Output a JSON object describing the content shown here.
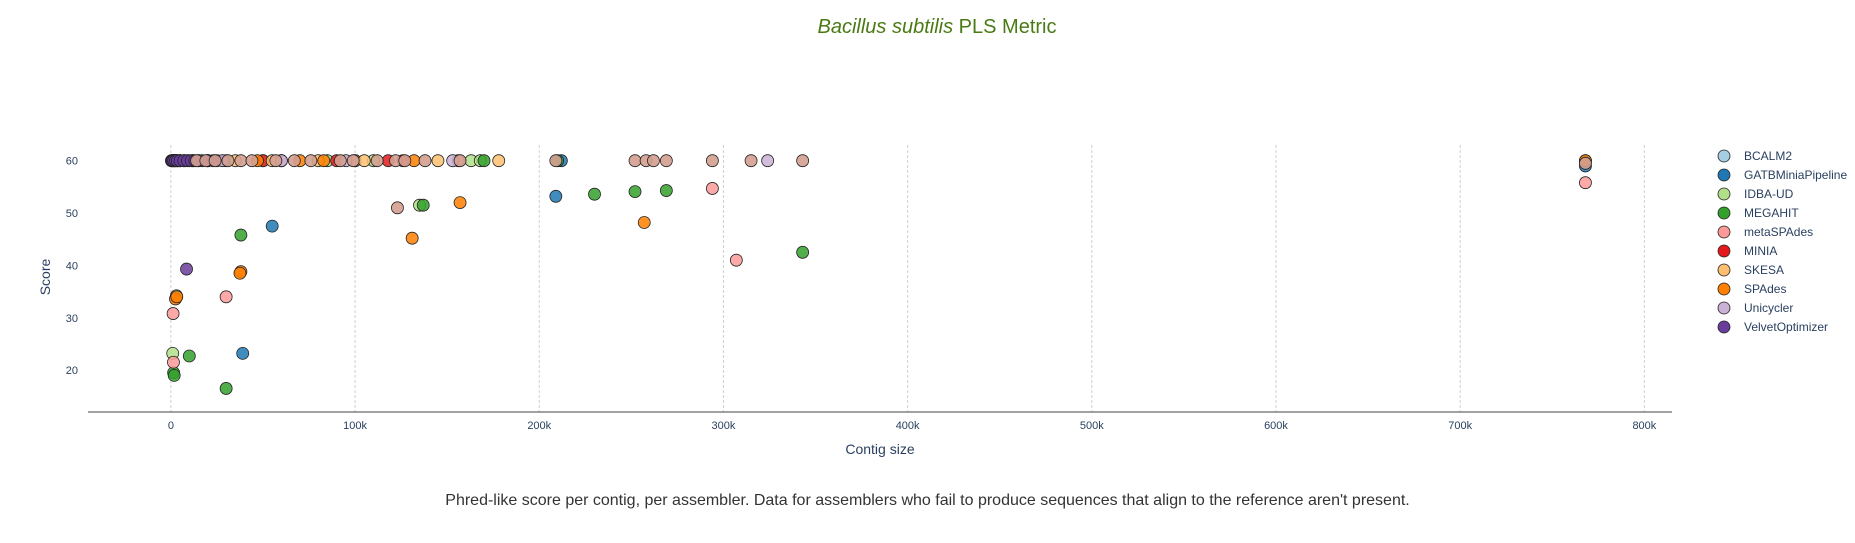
{
  "chart_data": {
    "type": "scatter",
    "title_italic": "Bacillus subtilis",
    "title_rest": " PLS Metric",
    "xlabel": "Contig size",
    "ylabel": "Score",
    "xlim": [
      -45000,
      815000
    ],
    "ylim": [
      12,
      63
    ],
    "x_ticks": [
      0,
      100000,
      200000,
      300000,
      400000,
      500000,
      600000,
      700000,
      800000
    ],
    "x_tick_labels": [
      "0",
      "100k",
      "200k",
      "300k",
      "400k",
      "500k",
      "600k",
      "700k",
      "800k"
    ],
    "y_ticks": [
      20,
      30,
      40,
      50,
      60
    ],
    "y_tick_labels": [
      "20",
      "30",
      "40",
      "50",
      "60"
    ],
    "grid": "vertical",
    "legend_position": "right",
    "series": [
      {
        "name": "BCALM2",
        "color": "#a6cee3",
        "points": [
          [
            500,
            60
          ],
          [
            1500,
            60
          ],
          [
            2500,
            60
          ],
          [
            3500,
            60
          ],
          [
            5000,
            60
          ],
          [
            7000,
            60
          ]
        ]
      },
      {
        "name": "GATBMiniaPipeline",
        "color": "#1f78b4",
        "points": [
          [
            1000,
            60
          ],
          [
            4000,
            60
          ],
          [
            12000,
            60
          ],
          [
            30000,
            60
          ],
          [
            60000,
            60
          ],
          [
            100000,
            60
          ],
          [
            212000,
            60
          ],
          [
            209000,
            53.2
          ],
          [
            55000,
            47.5
          ],
          [
            39000,
            23.2
          ],
          [
            768000,
            59
          ],
          [
            768000,
            60
          ]
        ]
      },
      {
        "name": "IDBA-UD",
        "color": "#b2df8a",
        "points": [
          [
            1000,
            23.2
          ],
          [
            3000,
            34.2
          ],
          [
            2000,
            60
          ],
          [
            20000,
            60
          ],
          [
            50000,
            60
          ],
          [
            85000,
            60
          ],
          [
            110000,
            60
          ],
          [
            135000,
            51.5
          ],
          [
            163000,
            60
          ],
          [
            168000,
            60
          ]
        ]
      },
      {
        "name": "MEGAHIT",
        "color": "#33a02c",
        "points": [
          [
            1500,
            19.5
          ],
          [
            1800,
            19
          ],
          [
            10000,
            22.7
          ],
          [
            30000,
            16.5
          ],
          [
            38000,
            45.8
          ],
          [
            137000,
            51.5
          ],
          [
            230000,
            53.6
          ],
          [
            252000,
            54.1
          ],
          [
            269000,
            54.3
          ],
          [
            343000,
            42.5
          ],
          [
            170000,
            60
          ],
          [
            210000,
            60
          ]
        ]
      },
      {
        "name": "metaSPAdes",
        "color": "#fb9a99",
        "points": [
          [
            1200,
            30.8
          ],
          [
            1400,
            21.5
          ],
          [
            30000,
            34
          ],
          [
            294000,
            54.7
          ],
          [
            307000,
            41
          ],
          [
            768000,
            55.8
          ],
          [
            20000,
            60
          ],
          [
            60000,
            60
          ],
          [
            100000,
            60
          ],
          [
            156000,
            60
          ]
        ]
      },
      {
        "name": "MINIA",
        "color": "#e31a1c",
        "points": [
          [
            3000,
            60
          ],
          [
            10000,
            60
          ],
          [
            25000,
            60
          ],
          [
            50000,
            60
          ],
          [
            90000,
            60
          ],
          [
            118000,
            60
          ],
          [
            126000,
            60
          ]
        ]
      },
      {
        "name": "SKESA",
        "color": "#fdbf6f",
        "points": [
          [
            5000,
            60
          ],
          [
            15000,
            60
          ],
          [
            35000,
            60
          ],
          [
            55000,
            60
          ],
          [
            80000,
            60
          ],
          [
            105000,
            60
          ],
          [
            145000,
            60
          ],
          [
            178000,
            60
          ]
        ]
      },
      {
        "name": "SPAdes",
        "color": "#ff7f00",
        "points": [
          [
            2500,
            33.6
          ],
          [
            3200,
            34
          ],
          [
            38000,
            38.8
          ],
          [
            37500,
            38.5
          ],
          [
            131000,
            45.2
          ],
          [
            157000,
            52
          ],
          [
            257000,
            48.2
          ],
          [
            8000,
            60
          ],
          [
            47000,
            60
          ],
          [
            70000,
            60
          ],
          [
            83000,
            60
          ],
          [
            132000,
            60
          ],
          [
            768000,
            60
          ]
        ]
      },
      {
        "name": "Unicycler",
        "color": "#cab2d6",
        "points": [
          [
            2000,
            60
          ],
          [
            12000,
            60
          ],
          [
            28000,
            60
          ],
          [
            60000,
            60
          ],
          [
            95000,
            60
          ],
          [
            153000,
            60
          ],
          [
            324000,
            60
          ]
        ]
      },
      {
        "name": "VelvetOptimizer",
        "color": "#6a3d9a",
        "points": [
          [
            300,
            60
          ],
          [
            800,
            60
          ],
          [
            1500,
            60
          ],
          [
            2500,
            60
          ],
          [
            3500,
            60
          ],
          [
            5000,
            60
          ],
          [
            7000,
            60
          ],
          [
            9000,
            60
          ],
          [
            11000,
            60
          ],
          [
            13000,
            60
          ],
          [
            15000,
            60
          ],
          [
            17000,
            60
          ],
          [
            20000,
            60
          ],
          [
            23000,
            60
          ],
          [
            8500,
            39.3
          ]
        ]
      }
    ],
    "overlay_points": {
      "color": "#d4a090",
      "points": [
        [
          14000,
          60
        ],
        [
          19000,
          60
        ],
        [
          24000,
          60
        ],
        [
          31000,
          60
        ],
        [
          38000,
          60
        ],
        [
          44000,
          60
        ],
        [
          57000,
          60
        ],
        [
          67000,
          60
        ],
        [
          76000,
          60
        ],
        [
          92000,
          60
        ],
        [
          99000,
          60
        ],
        [
          112000,
          60
        ],
        [
          122000,
          60
        ],
        [
          127000,
          60
        ],
        [
          138000,
          60
        ],
        [
          157000,
          60
        ],
        [
          209000,
          60
        ],
        [
          252000,
          60
        ],
        [
          258000,
          60
        ],
        [
          262000,
          60
        ],
        [
          269000,
          60
        ],
        [
          294000,
          60
        ],
        [
          315000,
          60
        ],
        [
          343000,
          60
        ],
        [
          123000,
          51
        ],
        [
          768000,
          59.5
        ]
      ]
    }
  },
  "caption": "Phred-like score per contig, per assembler. Data for assemblers who fail to produce sequences that align to the reference aren't present."
}
